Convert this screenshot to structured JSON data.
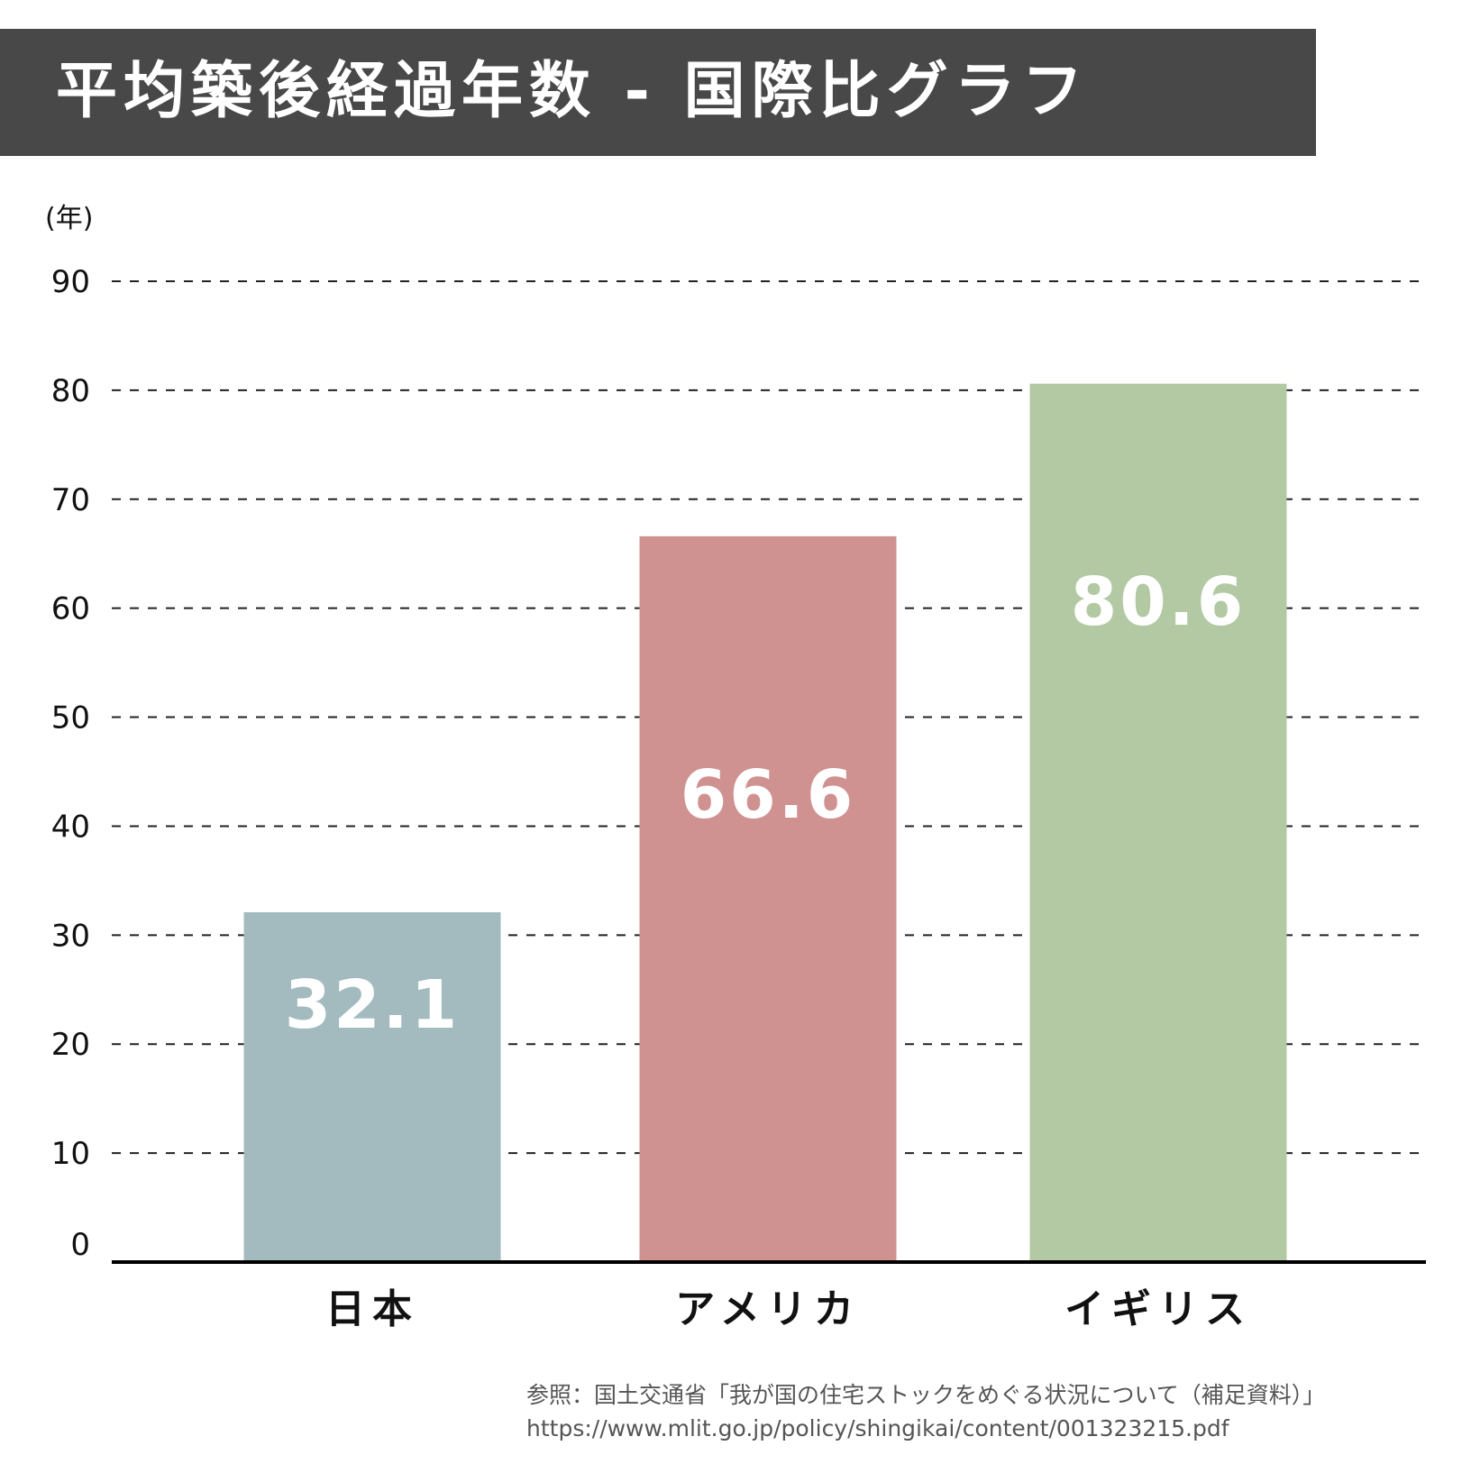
{
  "title": "平均築後経過年数 - 国際比グラフ",
  "source": {
    "line1": "参照：国土交通省「我が国の住宅ストックをめぐる状況について（補足資料）」",
    "line2": "https://www.mlit.go.jp/policy/shingikai/content/001323215.pdf"
  },
  "chart_data": {
    "type": "bar",
    "title": "平均築後経過年数 - 国際比グラフ",
    "ylabel": "(年)",
    "xlabel": "",
    "ylim": [
      0,
      90
    ],
    "yticks": [
      0,
      10,
      20,
      30,
      40,
      50,
      60,
      70,
      80,
      90
    ],
    "categories": [
      "日本",
      "アメリカ",
      "イギリス"
    ],
    "values": [
      32.1,
      66.6,
      80.6
    ],
    "data_labels": [
      "32.1",
      "66.6",
      "80.6"
    ],
    "colors": [
      "#a3bbbf",
      "#cf9291",
      "#b2c9a3"
    ],
    "grid": true,
    "legend": "none"
  }
}
